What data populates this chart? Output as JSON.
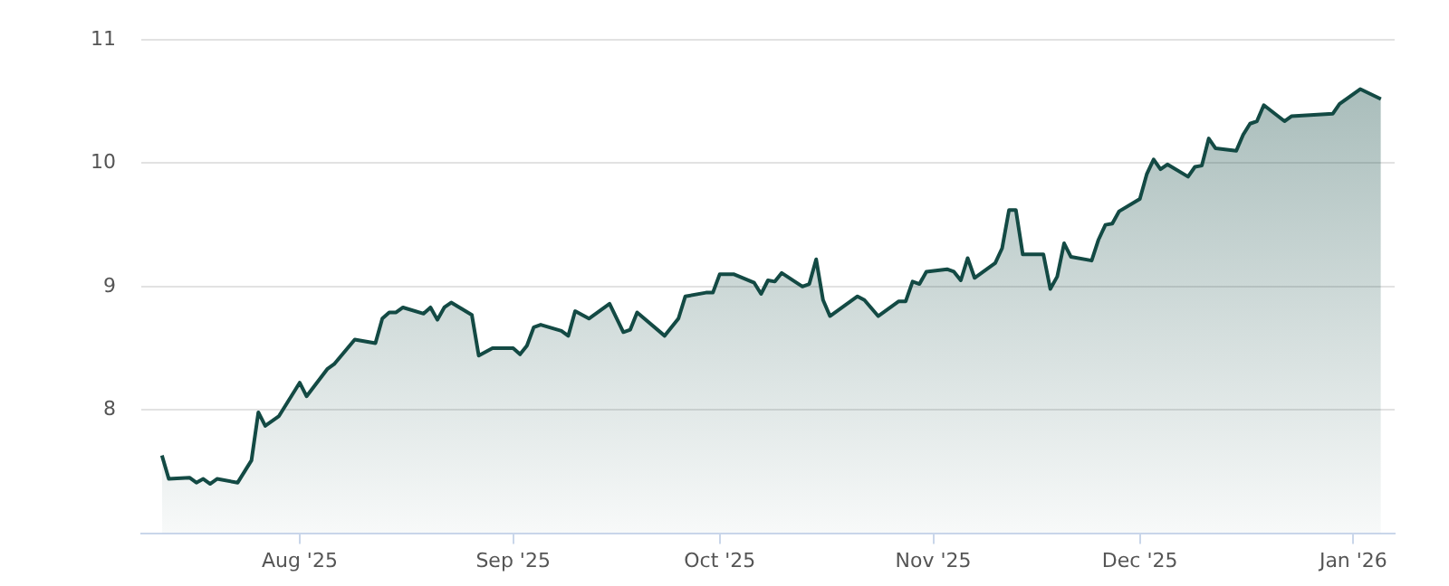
{
  "chart_data": {
    "type": "area",
    "color": "#134a44",
    "grid": "y",
    "ylim": [
      7,
      11
    ],
    "yticks": [
      8,
      9,
      10,
      11
    ],
    "xlim": [
      "2025-07-09",
      "2026-01-07"
    ],
    "xticks": [
      {
        "value": "2025-08-01",
        "label": "Aug '25"
      },
      {
        "value": "2025-09-01",
        "label": "Sep '25"
      },
      {
        "value": "2025-10-01",
        "label": "Oct '25"
      },
      {
        "value": "2025-11-01",
        "label": "Nov '25"
      },
      {
        "value": "2025-12-01",
        "label": "Dec '25"
      },
      {
        "value": "2026-01-01",
        "label": "Jan '26"
      }
    ],
    "x": [
      "2025-07-12",
      "2025-07-13",
      "2025-07-16",
      "2025-07-17",
      "2025-07-18",
      "2025-07-19",
      "2025-07-20",
      "2025-07-23",
      "2025-07-25",
      "2025-07-26",
      "2025-07-27",
      "2025-07-29",
      "2025-08-01",
      "2025-08-02",
      "2025-08-05",
      "2025-08-06",
      "2025-08-09",
      "2025-08-12",
      "2025-08-13",
      "2025-08-14",
      "2025-08-15",
      "2025-08-16",
      "2025-08-19",
      "2025-08-20",
      "2025-08-21",
      "2025-08-22",
      "2025-08-23",
      "2025-08-26",
      "2025-08-27",
      "2025-08-29",
      "2025-09-01",
      "2025-09-02",
      "2025-09-03",
      "2025-09-04",
      "2025-09-05",
      "2025-09-08",
      "2025-09-09",
      "2025-09-10",
      "2025-09-12",
      "2025-09-15",
      "2025-09-17",
      "2025-09-18",
      "2025-09-19",
      "2025-09-23",
      "2025-09-25",
      "2025-09-26",
      "2025-09-29",
      "2025-09-30",
      "2025-10-01",
      "2025-10-03",
      "2025-10-06",
      "2025-10-07",
      "2025-10-08",
      "2025-10-09",
      "2025-10-10",
      "2025-10-13",
      "2025-10-14",
      "2025-10-15",
      "2025-10-16",
      "2025-10-17",
      "2025-10-21",
      "2025-10-22",
      "2025-10-24",
      "2025-10-27",
      "2025-10-28",
      "2025-10-29",
      "2025-10-30",
      "2025-10-31",
      "2025-11-03",
      "2025-11-04",
      "2025-11-05",
      "2025-11-06",
      "2025-11-07",
      "2025-11-10",
      "2025-11-11",
      "2025-11-12",
      "2025-11-13",
      "2025-11-14",
      "2025-11-17",
      "2025-11-18",
      "2025-11-19",
      "2025-11-20",
      "2025-11-21",
      "2025-11-24",
      "2025-11-25",
      "2025-11-26",
      "2025-11-27",
      "2025-11-28",
      "2025-12-01",
      "2025-12-02",
      "2025-12-03",
      "2025-12-04",
      "2025-12-05",
      "2025-12-08",
      "2025-12-09",
      "2025-12-10",
      "2025-12-11",
      "2025-12-12",
      "2025-12-15",
      "2025-12-16",
      "2025-12-17",
      "2025-12-18",
      "2025-12-19",
      "2025-12-22",
      "2025-12-23",
      "2025-12-29",
      "2025-12-30",
      "2026-01-02",
      "2026-01-05"
    ],
    "values": [
      7.63,
      7.44,
      7.45,
      7.41,
      7.44,
      7.4,
      7.44,
      7.41,
      7.59,
      7.98,
      7.87,
      7.95,
      8.22,
      8.11,
      8.33,
      8.37,
      8.57,
      8.54,
      8.74,
      8.79,
      8.79,
      8.83,
      8.78,
      8.83,
      8.73,
      8.83,
      8.87,
      8.77,
      8.44,
      8.5,
      8.5,
      8.45,
      8.52,
      8.67,
      8.69,
      8.64,
      8.6,
      8.8,
      8.74,
      8.86,
      8.63,
      8.65,
      8.79,
      8.6,
      8.74,
      8.92,
      8.95,
      8.95,
      9.1,
      9.1,
      9.03,
      8.94,
      9.05,
      9.04,
      9.11,
      9.0,
      9.02,
      9.22,
      8.89,
      8.76,
      8.92,
      8.89,
      8.76,
      8.88,
      8.88,
      9.04,
      9.02,
      9.12,
      9.14,
      9.12,
      9.05,
      9.23,
      9.07,
      9.19,
      9.31,
      9.62,
      9.62,
      9.26,
      9.26,
      8.98,
      9.08,
      9.35,
      9.24,
      9.21,
      9.38,
      9.5,
      9.51,
      9.61,
      9.71,
      9.91,
      10.03,
      9.95,
      9.99,
      9.89,
      9.97,
      9.98,
      10.2,
      10.12,
      10.1,
      10.23,
      10.32,
      10.34,
      10.47,
      10.34,
      10.38,
      10.4,
      10.48,
      10.6,
      10.52
    ]
  }
}
